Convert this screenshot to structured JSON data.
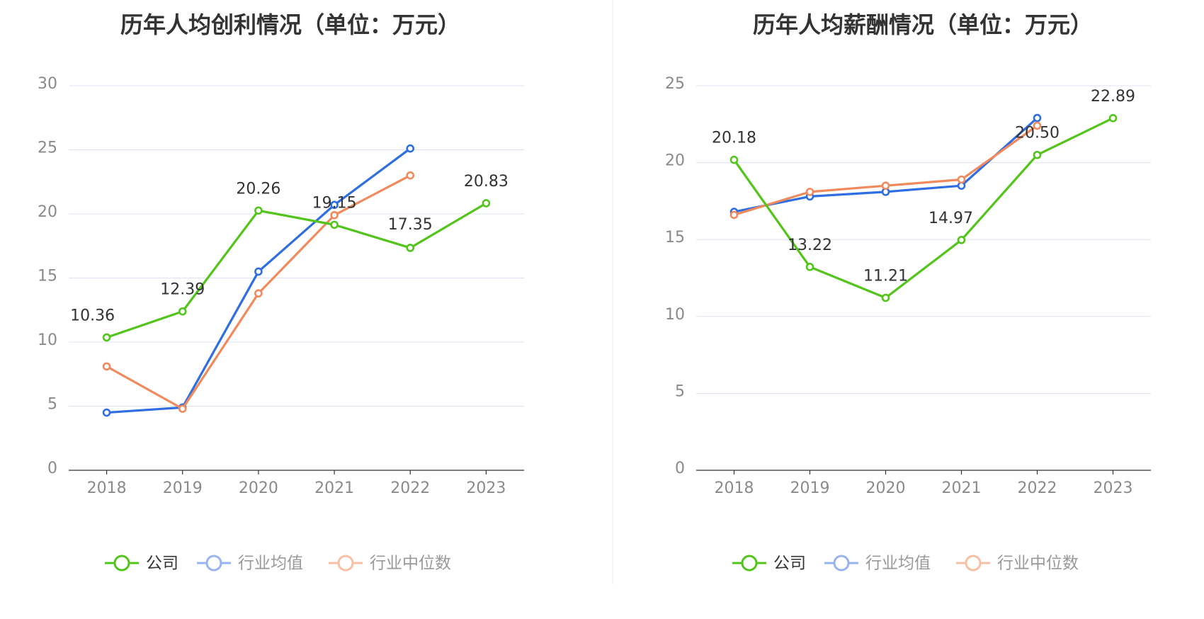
{
  "chart_data": [
    {
      "type": "line",
      "title": "历年人均创利情况（单位：万元）",
      "categories": [
        "2018",
        "2019",
        "2020",
        "2021",
        "2022",
        "2023"
      ],
      "ylim": [
        0,
        30
      ],
      "yticks": [
        0,
        5,
        10,
        15,
        20,
        25,
        30
      ],
      "grid": true,
      "legend_position": "bottom",
      "series": [
        {
          "name": "公司",
          "color": "#52c41a",
          "values": [
            10.36,
            12.39,
            20.26,
            19.15,
            17.35,
            20.83
          ],
          "labels": [
            "10.36",
            "12.39",
            "20.26",
            "19.15",
            "17.35",
            "20.83"
          ]
        },
        {
          "name": "行业均值",
          "color": "#2f6ee0",
          "values": [
            4.5,
            4.9,
            15.5,
            20.7,
            25.1,
            null
          ]
        },
        {
          "name": "行业中位数",
          "color": "#f08a5d",
          "values": [
            8.1,
            4.8,
            13.8,
            19.9,
            23.0,
            null
          ]
        }
      ]
    },
    {
      "type": "line",
      "title": "历年人均薪酬情况（单位：万元）",
      "categories": [
        "2018",
        "2019",
        "2020",
        "2021",
        "2022",
        "2023"
      ],
      "ylim": [
        0,
        25
      ],
      "yticks": [
        0,
        5,
        10,
        15,
        20,
        25
      ],
      "grid": true,
      "legend_position": "bottom",
      "series": [
        {
          "name": "公司",
          "color": "#52c41a",
          "values": [
            20.18,
            13.22,
            11.21,
            14.97,
            20.5,
            22.89
          ],
          "labels": [
            "20.18",
            "13.22",
            "11.21",
            "14.97",
            "20.50",
            "22.89"
          ]
        },
        {
          "name": "行业均值",
          "color": "#2f6ee0",
          "values": [
            16.8,
            17.8,
            18.1,
            18.5,
            22.9,
            null
          ]
        },
        {
          "name": "行业中位数",
          "color": "#f08a5d",
          "values": [
            16.6,
            18.1,
            18.5,
            18.9,
            22.4,
            null
          ]
        }
      ]
    }
  ]
}
